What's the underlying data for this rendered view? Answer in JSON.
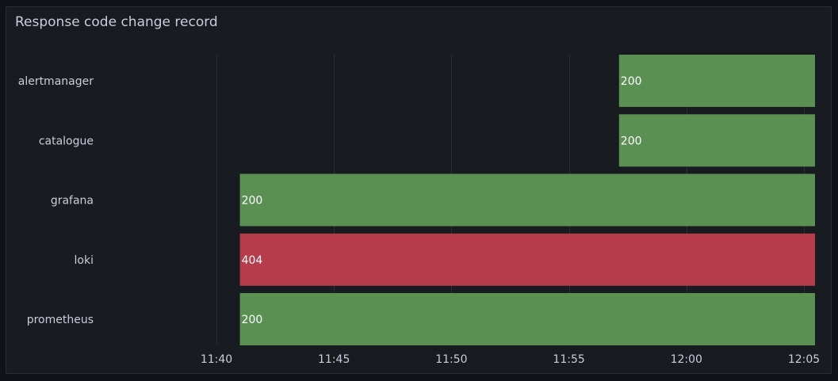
{
  "panel": {
    "title": "Response code change record"
  },
  "chart_data": {
    "type": "state-timeline",
    "title": "Response code change record",
    "x_axis": {
      "type": "time",
      "range": [
        "11:38:02",
        "12:05:23"
      ],
      "ticks": [
        "11:40",
        "11:45",
        "11:50",
        "11:55",
        "12:00",
        "12:05"
      ]
    },
    "rows": [
      {
        "name": "alertmanager",
        "segments": [
          {
            "start": "11:57:08",
            "end": "12:05:40",
            "value": "200"
          }
        ]
      },
      {
        "name": "catalogue",
        "segments": [
          {
            "start": "11:57:08",
            "end": "12:05:40",
            "value": "200"
          }
        ]
      },
      {
        "name": "grafana",
        "segments": [
          {
            "start": "11:41:00",
            "end": "12:05:40",
            "value": "200"
          }
        ]
      },
      {
        "name": "loki",
        "segments": [
          {
            "start": "11:41:00",
            "end": "12:05:40",
            "value": "404"
          }
        ]
      },
      {
        "name": "prometheus",
        "segments": [
          {
            "start": "11:41:00",
            "end": "12:05:40",
            "value": "200"
          }
        ]
      }
    ],
    "value_colors": {
      "200": "#5a9153",
      "404": "#b63b4b"
    },
    "grid": true,
    "legend": "none"
  }
}
